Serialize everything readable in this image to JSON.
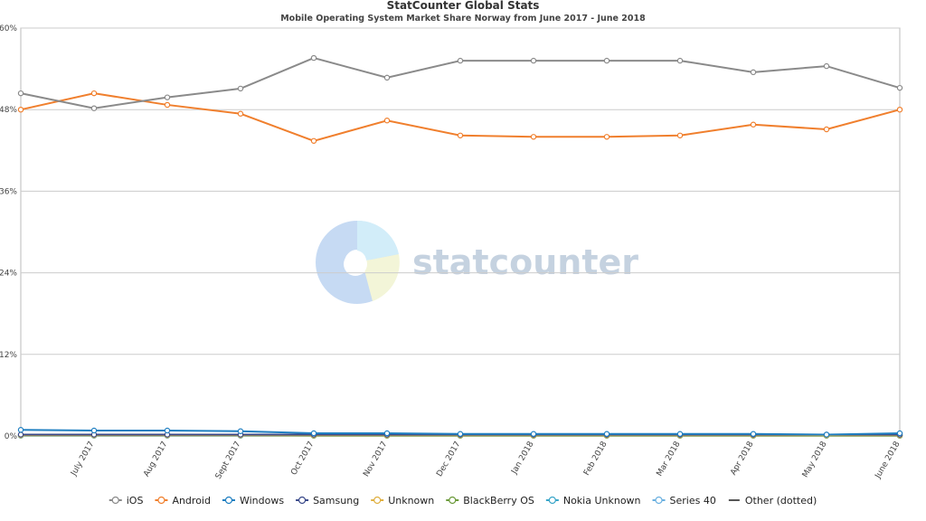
{
  "chart_data": {
    "type": "line",
    "title": "StatCounter Global Stats",
    "subtitle": "Mobile Operating System Market Share Norway from June 2017 - June 2018",
    "watermark": "statcounter",
    "categories": [
      null,
      "July 2017",
      "Aug 2017",
      "Sept 2017",
      "Oct 2017",
      "Nov 2017",
      "Dec 2017",
      "Jan 2018",
      "Feb 2018",
      "Mar 2018",
      "Apr 2018",
      "May 2018",
      "June 2018"
    ],
    "ylim": [
      0,
      60
    ],
    "yticks": [
      {
        "value": 0,
        "label": "0%"
      },
      {
        "value": 12,
        "label": "12%"
      },
      {
        "value": 24,
        "label": "24%"
      },
      {
        "value": 36,
        "label": "36%"
      },
      {
        "value": 48,
        "label": "48%"
      },
      {
        "value": 60,
        "label": "60%"
      }
    ],
    "grid": true,
    "legend": "bottom",
    "series": [
      {
        "name": "iOS",
        "color": "#8a8a8a",
        "values": [
          50.4,
          48.2,
          49.8,
          51.1,
          55.6,
          52.7,
          55.2,
          55.2,
          55.2,
          55.2,
          53.5,
          54.4,
          51.2
        ]
      },
      {
        "name": "Android",
        "color": "#f07f2d",
        "values": [
          48.0,
          50.4,
          48.7,
          47.4,
          43.4,
          46.4,
          44.2,
          44.0,
          44.0,
          44.2,
          45.8,
          45.1,
          48.0
        ]
      },
      {
        "name": "Windows",
        "color": "#1f7fc1",
        "values": [
          0.9,
          0.8,
          0.8,
          0.7,
          0.4,
          0.4,
          0.3,
          0.3,
          0.3,
          0.3,
          0.3,
          0.2,
          0.4
        ]
      },
      {
        "name": "Samsung",
        "color": "#3a4a8a",
        "values": [
          0.2,
          0.2,
          0.2,
          0.2,
          0.2,
          0.2,
          0.2,
          0.2,
          0.2,
          0.2,
          0.2,
          0.2,
          0.2
        ]
      },
      {
        "name": "Unknown",
        "color": "#e0b040",
        "values": [
          0.1,
          0.1,
          0.1,
          0.1,
          0.1,
          0.1,
          0.1,
          0.1,
          0.1,
          0.1,
          0.1,
          0.1,
          0.1
        ]
      },
      {
        "name": "BlackBerry OS",
        "color": "#6b9a3a",
        "values": [
          0.1,
          0.1,
          0.1,
          0.1,
          0.05,
          0.05,
          0.05,
          0.05,
          0.05,
          0.05,
          0.05,
          0.05,
          0.05
        ]
      },
      {
        "name": "Nokia Unknown",
        "color": "#3aa6c9",
        "values": [
          0.05,
          0.05,
          0.05,
          0.05,
          0.05,
          0.05,
          0.05,
          0.05,
          0.05,
          0.05,
          0.05,
          0.05,
          0.05
        ]
      },
      {
        "name": "Series 40",
        "color": "#6ab0e0",
        "values": [
          0.05,
          0.05,
          0.05,
          0.05,
          0.05,
          0.05,
          0.05,
          0.05,
          0.05,
          0.05,
          0.05,
          0.05,
          0.05
        ]
      },
      {
        "name": "Other (dotted)",
        "color": "#555555",
        "dotted": true,
        "values": [
          0.1,
          0.1,
          0.1,
          0.1,
          0.1,
          0.1,
          0.1,
          0.1,
          0.1,
          0.1,
          0.1,
          0.1,
          0.1
        ]
      }
    ]
  }
}
